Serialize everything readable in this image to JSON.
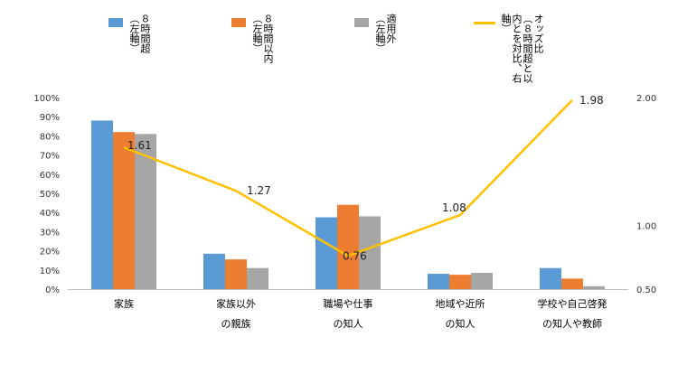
{
  "chart_data": {
    "type": "bar",
    "categories": [
      [
        "家族"
      ],
      [
        "家族以外",
        "の親族"
      ],
      [
        "職場や仕事",
        "の知人"
      ],
      [
        "地域や近所",
        "の知人"
      ],
      [
        "学校や自己啓発",
        "の知人や教師"
      ]
    ],
    "series": [
      {
        "name": "８時間超（左軸）",
        "axis": "left",
        "color": "#5B9BD5",
        "values": [
          88,
          18.5,
          37.5,
          8,
          11
        ]
      },
      {
        "name": "８時間以内（左軸）",
        "axis": "left",
        "color": "#ED7D31",
        "values": [
          82,
          15.5,
          44,
          7.5,
          5.5
        ]
      },
      {
        "name": "適用外（左軸）",
        "axis": "left",
        "color": "#A5A5A5",
        "values": [
          81,
          11,
          38,
          8.5,
          1.5
        ]
      },
      {
        "name": "オッズ比（８時間超と以内とを対比、右軸）",
        "axis": "right",
        "type": "line",
        "color": "#FFC000",
        "values": [
          1.61,
          1.27,
          0.76,
          1.08,
          1.98
        ],
        "labels": [
          "1.61",
          "1.27",
          "0.76",
          "1.08",
          "1.98"
        ]
      }
    ],
    "left_axis": {
      "ylim": [
        0,
        100
      ],
      "ticks": [
        "0%",
        "10%",
        "20%",
        "30%",
        "40%",
        "50%",
        "60%",
        "70%",
        "80%",
        "90%",
        "100%"
      ]
    },
    "right_axis": {
      "ylim": [
        0.5,
        2.0
      ],
      "ticks": [
        "0.50",
        "1.00",
        "2.00"
      ],
      "tick_values": [
        0.5,
        1.0,
        2.0
      ]
    },
    "legend": {
      "position": "top",
      "entries": [
        {
          "text": "８時間超\n（左軸）",
          "color": "#5B9BD5",
          "kind": "box"
        },
        {
          "text": "８時間以内\n（左軸）",
          "color": "#ED7D31",
          "kind": "box"
        },
        {
          "text": "適用外\n（左軸）",
          "color": "#A5A5A5",
          "kind": "box"
        },
        {
          "text": "オッズ比\n（８時間超と以\n内とを対比、右\n軸）",
          "color": "#FFC000",
          "kind": "line"
        }
      ]
    }
  }
}
